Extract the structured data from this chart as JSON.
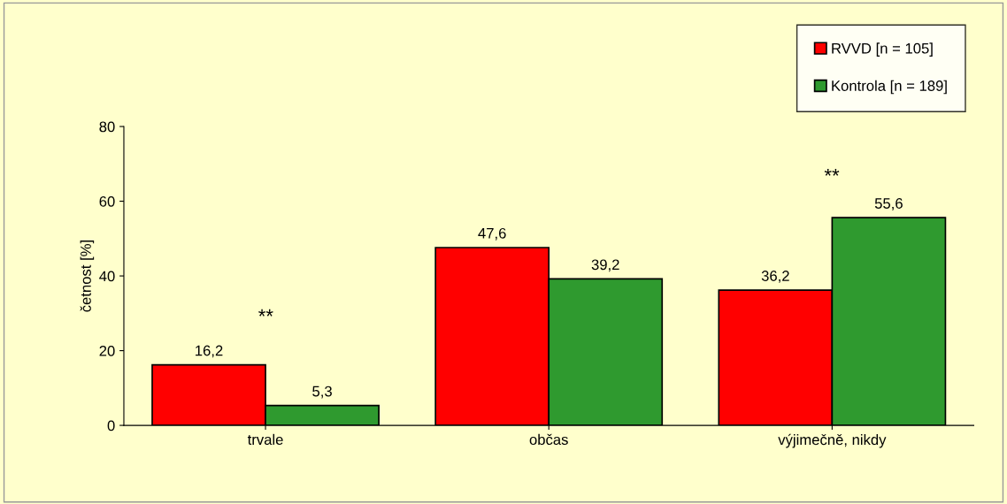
{
  "chart_data": {
    "type": "bar",
    "ylabel": "četnost [%]",
    "categories": [
      "trvale",
      "občas",
      "výjimečně, nikdy"
    ],
    "series": [
      {
        "name": "RVVD [n = 105]",
        "color": "#ff0000",
        "values": [
          16.2,
          47.6,
          36.2
        ],
        "value_labels": [
          "16,2",
          "47,6",
          "36,2"
        ]
      },
      {
        "name": "Kontrola [n = 189]",
        "color": "#2f9a2f",
        "values": [
          5.3,
          39.2,
          55.6
        ],
        "value_labels": [
          "5,3",
          "39,2",
          "55,6"
        ]
      }
    ],
    "ylim": [
      0,
      80
    ],
    "yticks": [
      0,
      20,
      40,
      60,
      80
    ],
    "grid": false,
    "legend": "top right",
    "annotations": [
      "**",
      "**"
    ]
  }
}
